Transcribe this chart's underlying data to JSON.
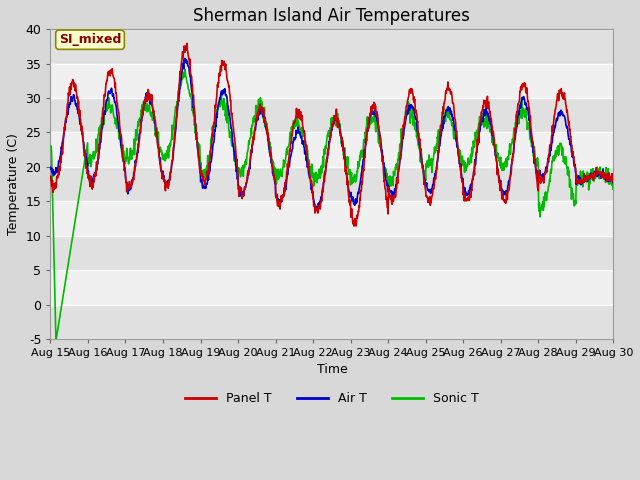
{
  "title": "Sherman Island Air Temperatures",
  "xlabel": "Time",
  "ylabel": "Temperature (C)",
  "ylim": [
    -5,
    40
  ],
  "yticks": [
    -5,
    0,
    5,
    10,
    15,
    20,
    25,
    30,
    35,
    40
  ],
  "x_labels": [
    "Aug 15",
    "Aug 16",
    "Aug 17",
    "Aug 18",
    "Aug 19",
    "Aug 20",
    "Aug 21",
    "Aug 22",
    "Aug 23",
    "Aug 24",
    "Aug 25",
    "Aug 26",
    "Aug 27",
    "Aug 28",
    "Aug 29",
    "Aug 30"
  ],
  "annotation_text": "SI_mixed",
  "annotation_color": "#8B0000",
  "annotation_bg": "#FFFFCC",
  "panel_T_color": "#CC0000",
  "air_T_color": "#0000CC",
  "sonic_T_color": "#00BB00",
  "bg_color": "#D8D8D8",
  "plot_bg_light": "#F0F0F0",
  "plot_bg_dark": "#E0E0E0",
  "n_days": 15,
  "pts_per_day": 96
}
